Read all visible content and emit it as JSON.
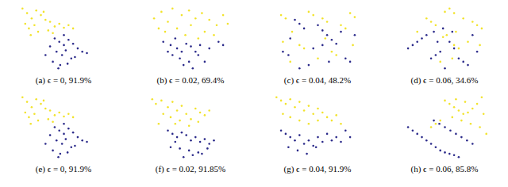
{
  "chart_data": [
    {
      "type": "scatter",
      "title": "(a) ϵ = 0, 91.9%",
      "xlim": [
        0,
        100
      ],
      "ylim": [
        0,
        100
      ],
      "tick_labels": false,
      "series": [
        {
          "color": "#f2e32c",
          "x": [
            5,
            10,
            15,
            20,
            8,
            25,
            30,
            12,
            18,
            35,
            40,
            22,
            28,
            45,
            50,
            55,
            60,
            38,
            14,
            33
          ],
          "y": [
            95,
            88,
            80,
            92,
            72,
            85,
            78,
            65,
            70,
            75,
            68,
            60,
            90,
            72,
            66,
            70,
            65,
            58,
            55,
            62
          ]
        },
        {
          "color": "#2b2a8a",
          "x": [
            40,
            45,
            50,
            55,
            60,
            35,
            42,
            48,
            52,
            58,
            65,
            70,
            30,
            38,
            46,
            54,
            62,
            75,
            44,
            50
          ],
          "y": [
            50,
            45,
            40,
            48,
            42,
            38,
            30,
            25,
            32,
            20,
            35,
            30,
            25,
            15,
            10,
            12,
            22,
            28,
            5,
            55
          ]
        }
      ]
    },
    {
      "type": "scatter",
      "title": "(b) ϵ = 0.02, 69.4%",
      "xlim": [
        0,
        100
      ],
      "ylim": [
        0,
        100
      ],
      "tick_labels": false,
      "series": [
        {
          "color": "#f2e32c",
          "x": [
            10,
            18,
            25,
            30,
            40,
            48,
            55,
            62,
            70,
            78,
            85,
            35,
            50,
            65,
            22,
            44,
            58,
            90,
            75,
            15
          ],
          "y": [
            80,
            90,
            75,
            95,
            85,
            92,
            80,
            88,
            78,
            70,
            85,
            65,
            70,
            60,
            60,
            55,
            50,
            72,
            55,
            65
          ]
        },
        {
          "color": "#2b2a8a",
          "x": [
            20,
            28,
            35,
            40,
            45,
            50,
            55,
            38,
            42,
            30,
            60,
            48,
            52,
            70,
            80,
            25,
            58,
            65,
            85,
            33
          ],
          "y": [
            45,
            40,
            35,
            30,
            42,
            38,
            30,
            20,
            10,
            25,
            40,
            15,
            5,
            35,
            45,
            30,
            25,
            15,
            40,
            50
          ]
        }
      ]
    },
    {
      "type": "scatter",
      "title": "(c) ϵ = 0.04, 48.2%",
      "xlim": [
        0,
        100
      ],
      "ylim": [
        0,
        100
      ],
      "tick_labels": false,
      "series": [
        {
          "color": "#f2e32c",
          "x": [
            10,
            15,
            22,
            40,
            45,
            55,
            60,
            75,
            80,
            85,
            90,
            30,
            35,
            65,
            70,
            50,
            20,
            88,
            58,
            12
          ],
          "y": [
            85,
            80,
            60,
            90,
            85,
            80,
            75,
            70,
            65,
            88,
            82,
            40,
            35,
            30,
            25,
            20,
            15,
            40,
            50,
            45
          ]
        },
        {
          "color": "#2b2a8a",
          "x": [
            25,
            30,
            35,
            12,
            18,
            50,
            55,
            60,
            65,
            70,
            75,
            80,
            85,
            45,
            40,
            90,
            20,
            55,
            62,
            30
          ],
          "y": [
            78,
            72,
            65,
            30,
            25,
            70,
            62,
            55,
            48,
            42,
            60,
            20,
            15,
            35,
            10,
            55,
            50,
            40,
            15,
            5
          ]
        }
      ]
    },
    {
      "type": "scatter",
      "title": "(d) ϵ = 0.06, 34.6%",
      "xlim": [
        0,
        100
      ],
      "ylim": [
        0,
        100
      ],
      "tick_labels": false,
      "series": [
        {
          "color": "#f2e32c",
          "x": [
            50,
            55,
            60,
            70,
            80,
            85,
            90,
            40,
            35,
            30,
            60,
            65,
            52,
            48,
            75,
            20,
            58,
            45,
            88,
            62
          ],
          "y": [
            90,
            95,
            88,
            80,
            75,
            70,
            65,
            70,
            75,
            80,
            40,
            35,
            55,
            52,
            45,
            60,
            20,
            15,
            40,
            60
          ]
        },
        {
          "color": "#2b2a8a",
          "x": [
            30,
            25,
            20,
            15,
            10,
            45,
            40,
            35,
            65,
            70,
            75,
            80,
            55,
            58,
            50,
            42,
            85,
            60,
            48,
            38
          ],
          "y": [
            55,
            50,
            45,
            40,
            35,
            30,
            25,
            20,
            20,
            15,
            10,
            55,
            45,
            60,
            5,
            45,
            30,
            35,
            65,
            60
          ]
        }
      ]
    },
    {
      "type": "scatter",
      "title": "(e) ϵ = 0, 91.9%",
      "xlim": [
        0,
        100
      ],
      "ylim": [
        0,
        100
      ],
      "tick_labels": false,
      "series": [
        {
          "color": "#f2e32c",
          "x": [
            5,
            10,
            15,
            20,
            8,
            25,
            30,
            12,
            18,
            35,
            40,
            22,
            28,
            45,
            50,
            55,
            60,
            38,
            14,
            33
          ],
          "y": [
            95,
            88,
            80,
            92,
            72,
            85,
            78,
            65,
            70,
            75,
            68,
            60,
            90,
            72,
            66,
            70,
            65,
            58,
            55,
            62
          ]
        },
        {
          "color": "#2b2a8a",
          "x": [
            40,
            45,
            50,
            55,
            60,
            35,
            42,
            48,
            52,
            58,
            65,
            70,
            30,
            38,
            46,
            54,
            62,
            75,
            44,
            50
          ],
          "y": [
            50,
            45,
            40,
            48,
            42,
            38,
            30,
            25,
            32,
            20,
            35,
            30,
            25,
            15,
            10,
            12,
            22,
            28,
            5,
            55
          ]
        }
      ]
    },
    {
      "type": "scatter",
      "title": "(f) ϵ = 0.02, 91.85%",
      "xlim": [
        0,
        100
      ],
      "ylim": [
        0,
        100
      ],
      "tick_labels": false,
      "series": [
        {
          "color": "#f2e32c",
          "x": [
            8,
            12,
            18,
            25,
            30,
            35,
            40,
            45,
            55,
            60,
            65,
            20,
            28,
            38,
            50,
            15,
            33,
            48,
            58,
            70
          ],
          "y": [
            92,
            85,
            90,
            80,
            88,
            75,
            82,
            70,
            78,
            72,
            68,
            70,
            65,
            60,
            62,
            55,
            55,
            52,
            58,
            75
          ]
        },
        {
          "color": "#2b2a8a",
          "x": [
            25,
            30,
            35,
            40,
            45,
            50,
            55,
            60,
            65,
            70,
            28,
            38,
            48,
            58,
            68,
            42,
            52,
            62,
            75,
            33
          ],
          "y": [
            45,
            40,
            35,
            42,
            38,
            30,
            35,
            28,
            32,
            25,
            20,
            18,
            15,
            12,
            18,
            5,
            8,
            10,
            30,
            28
          ]
        }
      ]
    },
    {
      "type": "scatter",
      "title": "(g) ϵ = 0.04, 91.9%",
      "xlim": [
        0,
        100
      ],
      "ylim": [
        0,
        100
      ],
      "tick_labels": false,
      "series": [
        {
          "color": "#f2e32c",
          "x": [
            5,
            10,
            15,
            20,
            25,
            30,
            35,
            40,
            45,
            50,
            55,
            60,
            65,
            70,
            75,
            20,
            30,
            40,
            12,
            50
          ],
          "y": [
            95,
            90,
            85,
            92,
            80,
            88,
            75,
            82,
            70,
            78,
            72,
            65,
            60,
            68,
            55,
            65,
            60,
            55,
            70,
            60
          ]
        },
        {
          "color": "#2b2a8a",
          "x": [
            10,
            15,
            20,
            25,
            30,
            35,
            40,
            45,
            50,
            55,
            60,
            65,
            70,
            75,
            80,
            18,
            28,
            38,
            48,
            85
          ],
          "y": [
            45,
            40,
            35,
            30,
            38,
            25,
            30,
            22,
            35,
            28,
            40,
            30,
            35,
            28,
            45,
            20,
            15,
            10,
            20,
            35
          ]
        }
      ]
    },
    {
      "type": "scatter",
      "title": "(h) ϵ = 0.06, 85.8%",
      "xlim": [
        0,
        100
      ],
      "ylim": [
        0,
        100
      ],
      "tick_labels": false,
      "series": [
        {
          "color": "#f2e32c",
          "x": [
            50,
            55,
            60,
            65,
            70,
            75,
            80,
            85,
            90,
            92,
            45,
            40,
            35,
            58,
            68,
            78,
            88,
            62,
            72,
            95
          ],
          "y": [
            90,
            85,
            80,
            75,
            70,
            72,
            78,
            85,
            95,
            70,
            60,
            55,
            50,
            65,
            60,
            55,
            50,
            92,
            88,
            40
          ]
        },
        {
          "color": "#2b2a8a",
          "x": [
            10,
            15,
            20,
            25,
            30,
            35,
            40,
            45,
            50,
            55,
            60,
            65,
            38,
            44,
            50,
            56,
            62,
            68,
            74,
            80
          ],
          "y": [
            50,
            45,
            40,
            35,
            30,
            25,
            20,
            15,
            12,
            10,
            8,
            5,
            60,
            55,
            50,
            45,
            40,
            35,
            30,
            25
          ]
        }
      ]
    }
  ]
}
